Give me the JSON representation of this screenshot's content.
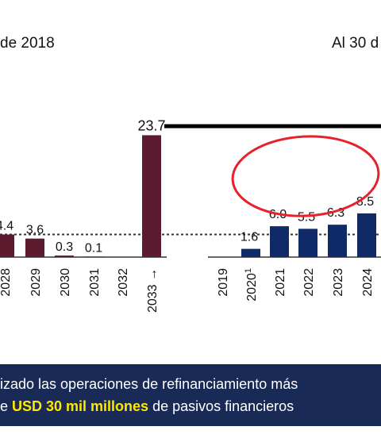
{
  "header": {
    "left_text": "de 2018",
    "right_text": "Al 30 d"
  },
  "colors": {
    "left_bars": "#5c1a2f",
    "right_bars": "#0f2a66",
    "highlight_ellipse": "#e8202a",
    "banner_bg": "#1a2a57",
    "banner_highlight": "#ffe800"
  },
  "chart_data": [
    {
      "type": "bar",
      "categories": [
        "2028",
        "2029",
        "2030",
        "2031",
        "2032",
        "2033 →"
      ],
      "values": [
        4.4,
        3.6,
        0.3,
        0.1,
        0,
        23.7
      ],
      "value_labels": [
        "4.4",
        "3.6",
        "0.3",
        "0.1",
        "",
        "23.7"
      ],
      "ylim": [
        0,
        23.7
      ],
      "reference_line": {
        "style": "dotted",
        "value": 4.4
      },
      "grid": false
    },
    {
      "type": "bar",
      "categories": [
        "2019",
        "2020¹",
        "2021",
        "2022",
        "2023",
        "2024"
      ],
      "values": [
        0,
        1.6,
        6.0,
        5.5,
        6.3,
        8.5
      ],
      "value_labels": [
        "",
        "1.6",
        "6.0",
        "5.5",
        "6.3",
        "8.5"
      ],
      "ylim": [
        0,
        23.7
      ],
      "reference_line": {
        "style": "dotted",
        "value": 4.4
      },
      "top_rule": true,
      "grid": false
    }
  ],
  "banner": {
    "line1": "izado las operaciones de refinanciamiento más",
    "line2_prefix": "e ",
    "line2_highlight": "USD 30 mil millones",
    "line2_suffix": " de pasivos financieros"
  }
}
